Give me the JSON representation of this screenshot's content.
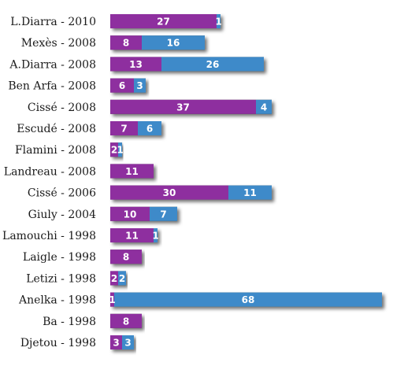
{
  "chart_data": {
    "type": "bar",
    "orientation": "horizontal",
    "stacked": true,
    "title": "",
    "xlabel": "",
    "ylabel": "",
    "grid": false,
    "legend": "none",
    "xlim": [
      0,
      69
    ],
    "categories": [
      "L.Diarra - 2010",
      "Mexès - 2008",
      "A.Diarra - 2008",
      "Ben Arfa - 2008",
      "Cissé - 2008",
      "Escudé - 2008",
      "Flamini - 2008",
      "Landreau - 2008",
      "Cissé - 2006",
      "Giuly - 2004",
      "Lamouchi - 1998",
      "Laigle - 1998",
      "Letizi - 1998",
      "Anelka - 1998",
      "Ba - 1998",
      "Djetou - 1998"
    ],
    "series": [
      {
        "color": "#8e2f9f",
        "values": [
          27,
          8,
          13,
          6,
          37,
          7,
          2,
          11,
          30,
          10,
          11,
          8,
          2,
          1,
          8,
          3
        ]
      },
      {
        "color": "#3e8ac9",
        "values": [
          1,
          16,
          26,
          3,
          4,
          6,
          1,
          null,
          11,
          7,
          1,
          null,
          2,
          68,
          null,
          3
        ]
      }
    ]
  }
}
